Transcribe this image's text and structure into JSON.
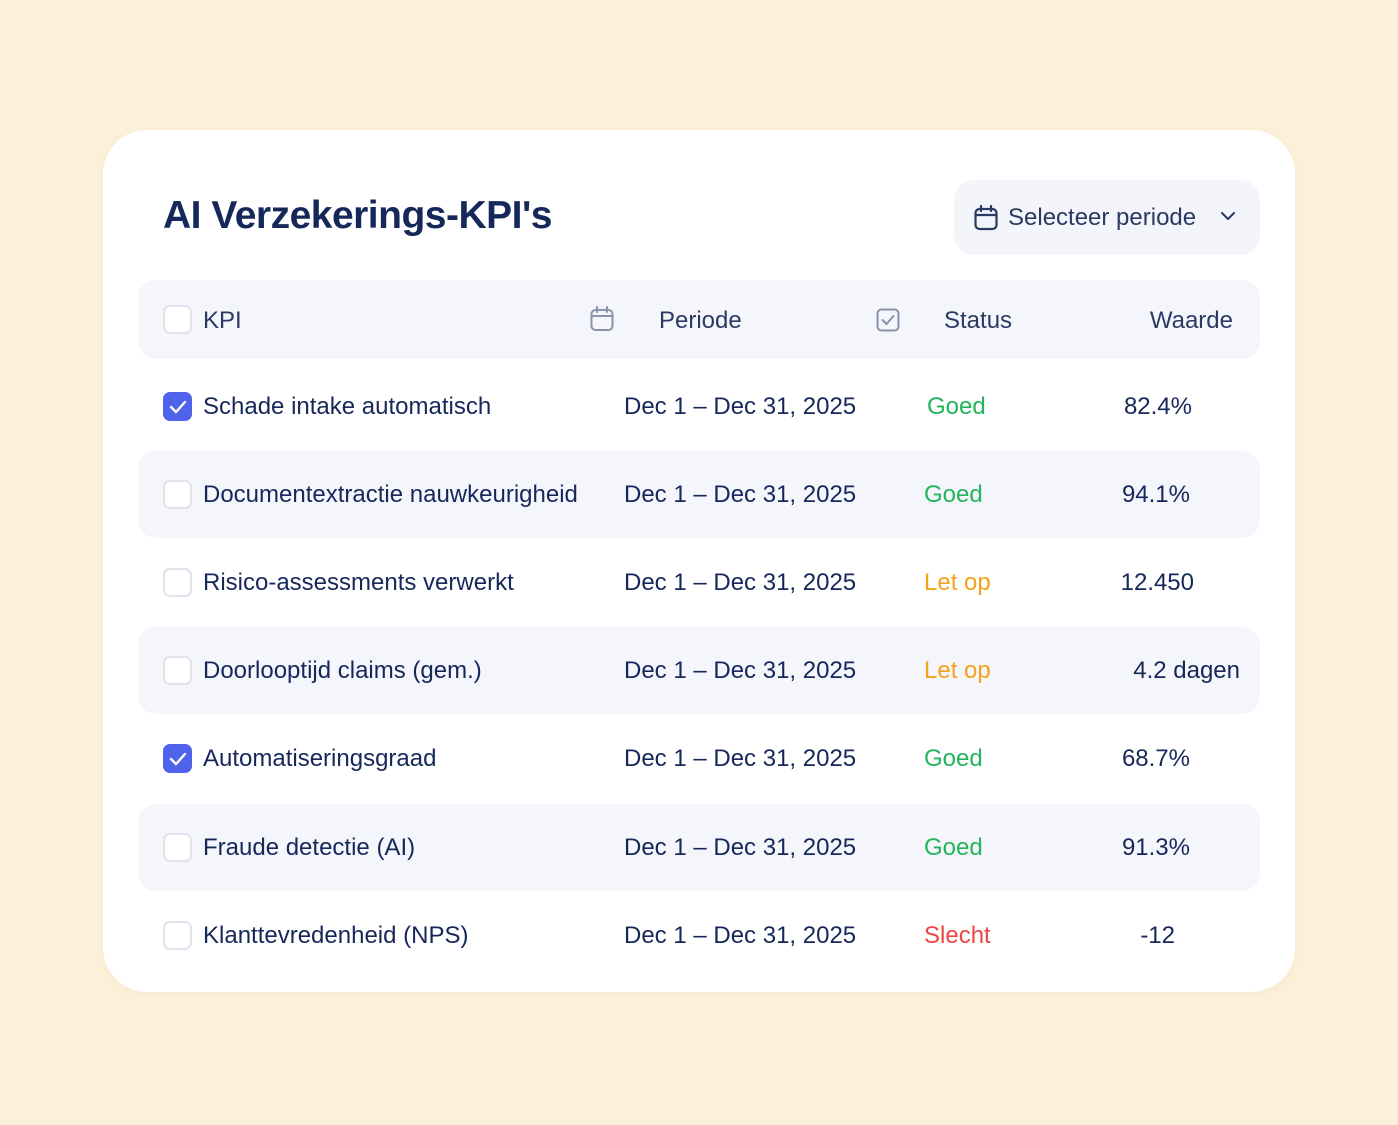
{
  "title": "AI Verzekerings-KPI's",
  "period_selector": {
    "label": "Selecteer periode",
    "icon": "calendar-icon",
    "chevron_icon": "chevron-down-icon"
  },
  "table": {
    "headers": {
      "kpi": "KPI",
      "periode": "Periode",
      "status": "Status",
      "waarde": "Waarde"
    },
    "rows": [
      {
        "kpi": "Schade intake automatisch",
        "periode": "Dec 1 – Dec 31, 2025",
        "status": "Goed",
        "status_level": "good",
        "waarde": "82.4%",
        "checked": true
      },
      {
        "kpi": "Documentextractie nauwkeurigheid",
        "periode": "Dec 1 – Dec 31, 2025",
        "status": "Goed",
        "status_level": "good",
        "waarde": "94.1%",
        "checked": false
      },
      {
        "kpi": "Risico-assessments verwerkt",
        "periode": "Dec 1 – Dec 31, 2025",
        "status": "Let op",
        "status_level": "warn",
        "waarde": "12.450",
        "checked": false
      },
      {
        "kpi": "Doorlooptijd claims (gem.)",
        "periode": "Dec 1 – Dec 31, 2025",
        "status": "Let op",
        "status_level": "warn",
        "waarde": "4.2 dagen",
        "checked": false
      },
      {
        "kpi": "Automatiseringsgraad",
        "periode": "Dec 1 – Dec 31, 2025",
        "status": "Goed",
        "status_level": "good",
        "waarde": "68.7%",
        "checked": true
      },
      {
        "kpi": "Fraude detectie (AI)",
        "periode": "Dec 1 – Dec 31, 2025",
        "status": "Goed",
        "status_level": "good",
        "waarde": "91.3%",
        "checked": false
      },
      {
        "kpi": "Klanttevredenheid (NPS)",
        "periode": "Dec 1 – Dec 31, 2025",
        "status": "Slecht",
        "status_level": "bad",
        "waarde": "-12",
        "checked": false
      }
    ]
  },
  "colors": {
    "background": "#fdf0da",
    "accent": "#4f63ea",
    "good": "#22b55b",
    "warn": "#f5a21a",
    "bad": "#ef4444",
    "text": "#16275a"
  }
}
